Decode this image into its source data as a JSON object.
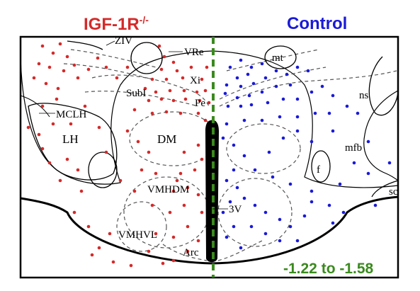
{
  "colors": {
    "knockout": "#d42a2a",
    "control": "#1a1ad9",
    "midline": "#3a8a1e",
    "outline": "#000000",
    "dashed": "#555555"
  },
  "headers": {
    "left_prefix": "IGF-1R",
    "left_superscript": "-/-",
    "right": "Control"
  },
  "bregma": "-1.22 to -1.58",
  "regions": {
    "ZIV": "ZIV",
    "VRe": "VRe",
    "mt": "mt",
    "Xi": "Xi",
    "SubI": "SubI",
    "Pe": "Pe",
    "ns": "ns",
    "MCLH": "MCLH",
    "LH": "LH",
    "DM": "DM",
    "mfb": "mfb",
    "f": "f",
    "VMHDM": "VMHDM",
    "3V": "3V",
    "sc": "sc",
    "VMHVL": "VMHVL",
    "Arc": "Arc"
  }
}
